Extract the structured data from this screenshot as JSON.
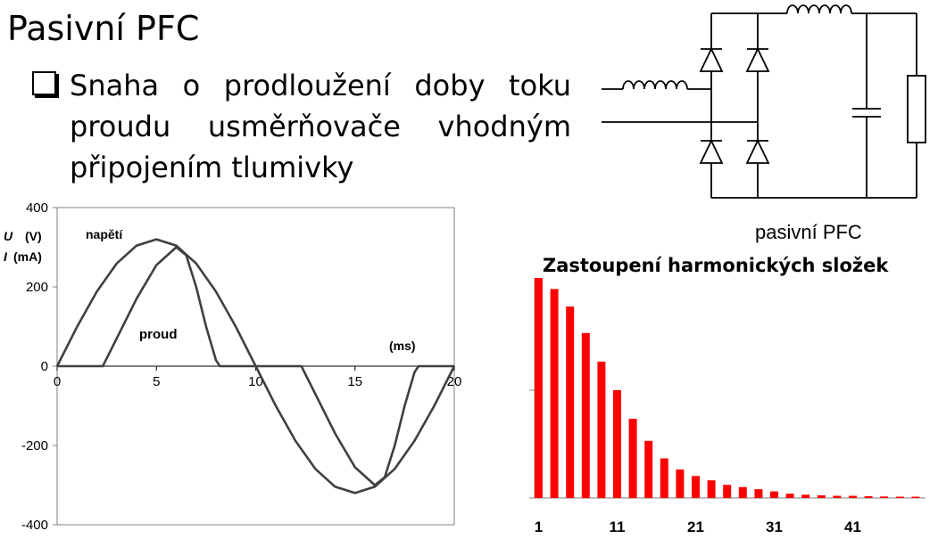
{
  "slide": {
    "title": "Pasivní PFC",
    "bullet_lines": [
      "Snaha o prodloužení doby toku",
      "proudu usměrňovače vhodným",
      "připojením tlumivky"
    ]
  },
  "circuit": {
    "caption": "pasivní PFC",
    "components": [
      "inductor-input",
      "diode-bridge",
      "inductor-dc",
      "capacitor",
      "resistor-load"
    ],
    "stroke_color": "#000000"
  },
  "waveform_chart": {
    "type": "line",
    "y_label_u": "U",
    "y_unit_u": "(V)",
    "y_label_i": "I",
    "y_unit_i": "(mA)",
    "x_unit": "(ms)",
    "x_ticks": [
      "0",
      "5",
      "10",
      "15",
      "20"
    ],
    "y_ticks": [
      "400",
      "200",
      "0",
      "-200",
      "-400"
    ],
    "annotations": {
      "voltage": "napětí",
      "current": "proud"
    },
    "line_color": "#404040"
  },
  "chart_data": [
    {
      "type": "line",
      "title": "",
      "xlabel": "(ms)",
      "ylabel": "U (V) I (mA)",
      "xlim": [
        0,
        20
      ],
      "ylim": [
        -400,
        400
      ],
      "grid": false,
      "series": [
        {
          "name": "napětí",
          "x": [
            0,
            1,
            2,
            3,
            4,
            5,
            6,
            7,
            8,
            9,
            10,
            11,
            12,
            13,
            14,
            15,
            16,
            17,
            18,
            19,
            20
          ],
          "y": [
            0,
            99,
            188,
            259,
            304,
            320,
            304,
            259,
            188,
            99,
            0,
            -99,
            -188,
            -259,
            -304,
            -320,
            -304,
            -259,
            -188,
            -99,
            0
          ]
        },
        {
          "name": "proud",
          "x": [
            0,
            2.3,
            3,
            4,
            5,
            6,
            6.5,
            7,
            7.5,
            8,
            8.2,
            10,
            12.3,
            13,
            14,
            15,
            16,
            16.5,
            17,
            17.5,
            18,
            18.2,
            20
          ],
          "y": [
            0,
            0,
            70,
            170,
            255,
            300,
            280,
            200,
            100,
            15,
            0,
            0,
            0,
            -70,
            -170,
            -255,
            -300,
            -280,
            -200,
            -100,
            -15,
            0,
            0
          ]
        }
      ]
    },
    {
      "type": "bar",
      "title": "Zastoupení harmonických složek",
      "xlabel": "",
      "ylabel": "",
      "x_tick_labels": [
        "1",
        "11",
        "21",
        "31",
        "41"
      ],
      "bar_color": "#ff0000",
      "categories": [
        1,
        3,
        5,
        7,
        9,
        11,
        13,
        15,
        17,
        19,
        21,
        23,
        25,
        27,
        29,
        31,
        33,
        35,
        37,
        39,
        41,
        43,
        45,
        47,
        49
      ],
      "values": [
        100,
        95,
        87,
        75,
        62,
        49,
        36,
        26,
        18,
        13,
        10,
        8,
        6,
        5,
        4,
        3,
        2,
        1.5,
        1.2,
        1,
        1,
        0.8,
        0.7,
        0.6,
        0.6
      ],
      "ylim": [
        0,
        100
      ]
    }
  ]
}
